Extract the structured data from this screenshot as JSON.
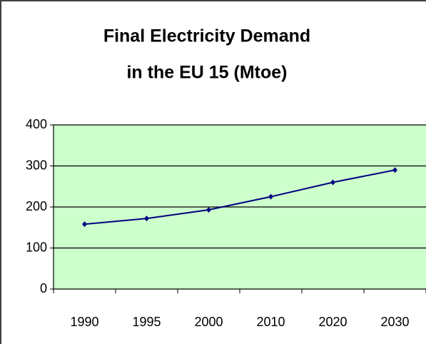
{
  "chart_data": {
    "type": "line",
    "title": [
      "Final Electricity Demand",
      "in the EU 15 (Mtoe)"
    ],
    "categories": [
      "1990",
      "1995",
      "2000",
      "2010",
      "2020",
      "2030"
    ],
    "values": [
      158,
      172,
      193,
      225,
      260,
      290
    ],
    "color": "#000080",
    "ylim": [
      0,
      400
    ],
    "yticks": [
      0,
      100,
      200,
      300,
      400
    ],
    "grid": true,
    "plot_background": "#ccffcc"
  }
}
